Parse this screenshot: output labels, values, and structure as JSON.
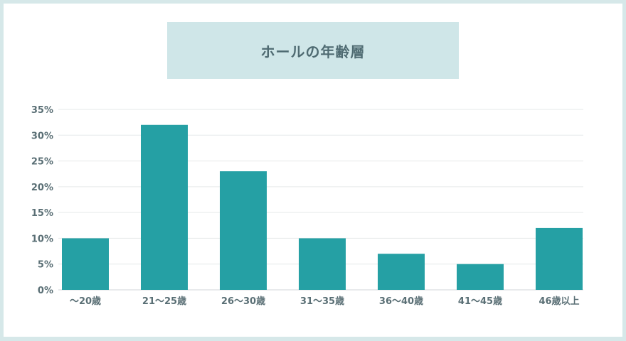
{
  "chart_data": {
    "type": "bar",
    "title": "ホールの年齢層",
    "categories": [
      "〜20歳",
      "21〜25歳",
      "26〜30歳",
      "31〜35歳",
      "36〜40歳",
      "41〜45歳",
      "46歳以上"
    ],
    "values": [
      10,
      32,
      23,
      10,
      7,
      5,
      12
    ],
    "yticks": [
      "0%",
      "5%",
      "10%",
      "15%",
      "20%",
      "25%",
      "30%",
      "35%"
    ],
    "ylim": [
      0,
      35
    ],
    "grid": true,
    "bar_color": "#25a0a4"
  }
}
